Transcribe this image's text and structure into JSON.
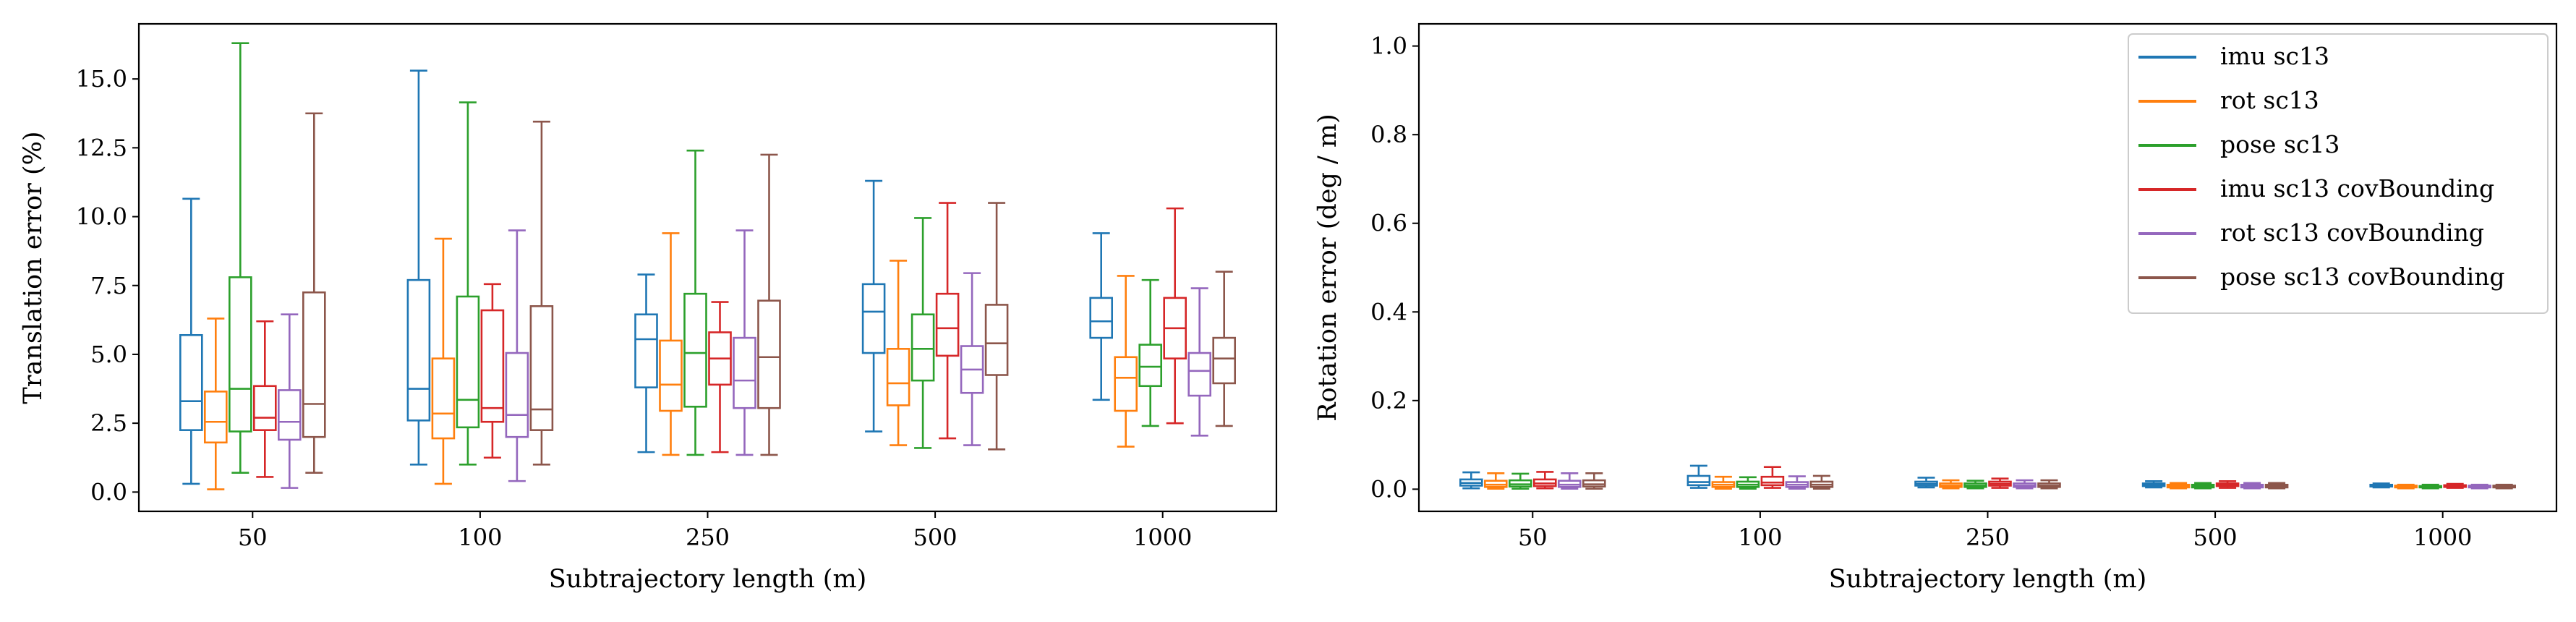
{
  "colors": [
    "#1f77b4",
    "#ff7f0e",
    "#2ca02c",
    "#d62728",
    "#9467bd",
    "#8c564b"
  ],
  "chart_data": [
    {
      "type": "box",
      "xlabel": "Subtrajectory length (m)",
      "ylabel": "Translation error (%)",
      "ylim": [
        -0.7,
        17.0
      ],
      "yticks": [
        "0.0",
        "2.5",
        "5.0",
        "7.5",
        "10.0",
        "12.5",
        "15.0"
      ],
      "categories": [
        "50",
        "100",
        "250",
        "500",
        "1000"
      ],
      "legend": null,
      "series": [
        {
          "name": "imu sc13",
          "boxes": [
            {
              "whislo": 0.3,
              "q1": 2.25,
              "med": 3.3,
              "q3": 5.7,
              "whishi": 10.65
            },
            {
              "whislo": 1.0,
              "q1": 2.6,
              "med": 3.75,
              "q3": 7.7,
              "whishi": 15.3
            },
            {
              "whislo": 1.45,
              "q1": 3.8,
              "med": 5.55,
              "q3": 6.45,
              "whishi": 7.9
            },
            {
              "whislo": 2.2,
              "q1": 5.05,
              "med": 6.55,
              "q3": 7.55,
              "whishi": 11.3
            },
            {
              "whislo": 3.35,
              "q1": 5.6,
              "med": 6.2,
              "q3": 7.05,
              "whishi": 9.4
            }
          ]
        },
        {
          "name": "rot sc13",
          "boxes": [
            {
              "whislo": 0.1,
              "q1": 1.8,
              "med": 2.55,
              "q3": 3.65,
              "whishi": 6.3
            },
            {
              "whislo": 0.3,
              "q1": 1.95,
              "med": 2.85,
              "q3": 4.85,
              "whishi": 9.2
            },
            {
              "whislo": 1.35,
              "q1": 2.95,
              "med": 3.9,
              "q3": 5.5,
              "whishi": 9.4
            },
            {
              "whislo": 1.7,
              "q1": 3.15,
              "med": 3.95,
              "q3": 5.2,
              "whishi": 8.4
            },
            {
              "whislo": 1.65,
              "q1": 2.95,
              "med": 4.15,
              "q3": 4.9,
              "whishi": 7.85
            }
          ]
        },
        {
          "name": "pose sc13",
          "boxes": [
            {
              "whislo": 0.7,
              "q1": 2.2,
              "med": 3.75,
              "q3": 7.8,
              "whishi": 16.3
            },
            {
              "whislo": 1.0,
              "q1": 2.35,
              "med": 3.35,
              "q3": 7.1,
              "whishi": 14.15
            },
            {
              "whislo": 1.35,
              "q1": 3.1,
              "med": 5.05,
              "q3": 7.2,
              "whishi": 12.4
            },
            {
              "whislo": 1.6,
              "q1": 4.05,
              "med": 5.2,
              "q3": 6.45,
              "whishi": 9.95
            },
            {
              "whislo": 2.4,
              "q1": 3.85,
              "med": 4.55,
              "q3": 5.35,
              "whishi": 7.7
            }
          ]
        },
        {
          "name": "imu sc13 covBounding",
          "boxes": [
            {
              "whislo": 0.55,
              "q1": 2.25,
              "med": 2.7,
              "q3": 3.85,
              "whishi": 6.2
            },
            {
              "whislo": 1.25,
              "q1": 2.55,
              "med": 3.05,
              "q3": 6.6,
              "whishi": 7.55
            },
            {
              "whislo": 1.45,
              "q1": 3.9,
              "med": 4.85,
              "q3": 5.8,
              "whishi": 6.9
            },
            {
              "whislo": 1.95,
              "q1": 4.95,
              "med": 5.95,
              "q3": 7.2,
              "whishi": 10.5
            },
            {
              "whislo": 2.5,
              "q1": 4.85,
              "med": 5.95,
              "q3": 7.05,
              "whishi": 10.3
            }
          ]
        },
        {
          "name": "rot sc13 covBounding",
          "boxes": [
            {
              "whislo": 0.15,
              "q1": 1.9,
              "med": 2.55,
              "q3": 3.7,
              "whishi": 6.45
            },
            {
              "whislo": 0.4,
              "q1": 2.0,
              "med": 2.8,
              "q3": 5.05,
              "whishi": 9.5
            },
            {
              "whislo": 1.35,
              "q1": 3.05,
              "med": 4.05,
              "q3": 5.6,
              "whishi": 9.5
            },
            {
              "whislo": 1.7,
              "q1": 3.6,
              "med": 4.45,
              "q3": 5.3,
              "whishi": 7.95
            },
            {
              "whislo": 2.05,
              "q1": 3.5,
              "med": 4.4,
              "q3": 5.05,
              "whishi": 7.4
            }
          ]
        },
        {
          "name": "pose sc13 covBounding",
          "boxes": [
            {
              "whislo": 0.7,
              "q1": 2.0,
              "med": 3.2,
              "q3": 7.25,
              "whishi": 13.75
            },
            {
              "whislo": 1.0,
              "q1": 2.25,
              "med": 3.0,
              "q3": 6.75,
              "whishi": 13.45
            },
            {
              "whislo": 1.35,
              "q1": 3.05,
              "med": 4.9,
              "q3": 6.95,
              "whishi": 12.25
            },
            {
              "whislo": 1.55,
              "q1": 4.25,
              "med": 5.4,
              "q3": 6.8,
              "whishi": 10.5
            },
            {
              "whislo": 2.4,
              "q1": 3.95,
              "med": 4.85,
              "q3": 5.6,
              "whishi": 8.0
            }
          ]
        }
      ]
    },
    {
      "type": "box",
      "xlabel": "Subtrajectory length (m)",
      "ylabel": "Rotation error (deg / m)",
      "ylim": [
        -0.05,
        1.05
      ],
      "yticks": [
        "0.0",
        "0.2",
        "0.4",
        "0.6",
        "0.8",
        "1.0"
      ],
      "categories": [
        "50",
        "100",
        "250",
        "500",
        "1000"
      ],
      "legend": "top-right",
      "series": [
        {
          "name": "imu sc13",
          "boxes": [
            {
              "whislo": 0.002,
              "q1": 0.008,
              "med": 0.014,
              "q3": 0.022,
              "whishi": 0.038
            },
            {
              "whislo": 0.003,
              "q1": 0.009,
              "med": 0.016,
              "q3": 0.03,
              "whishi": 0.053
            },
            {
              "whislo": 0.004,
              "q1": 0.008,
              "med": 0.012,
              "q3": 0.017,
              "whishi": 0.026
            },
            {
              "whislo": 0.004,
              "q1": 0.007,
              "med": 0.01,
              "q3": 0.013,
              "whishi": 0.018
            },
            {
              "whislo": 0.004,
              "q1": 0.006,
              "med": 0.008,
              "q3": 0.01,
              "whishi": 0.013
            }
          ]
        },
        {
          "name": "rot sc13",
          "boxes": [
            {
              "whislo": 0.001,
              "q1": 0.005,
              "med": 0.01,
              "q3": 0.019,
              "whishi": 0.036
            },
            {
              "whislo": 0.001,
              "q1": 0.005,
              "med": 0.01,
              "q3": 0.016,
              "whishi": 0.028
            },
            {
              "whislo": 0.002,
              "q1": 0.005,
              "med": 0.008,
              "q3": 0.013,
              "whishi": 0.02
            },
            {
              "whislo": 0.002,
              "q1": 0.004,
              "med": 0.007,
              "q3": 0.01,
              "whishi": 0.014
            },
            {
              "whislo": 0.002,
              "q1": 0.004,
              "med": 0.006,
              "q3": 0.008,
              "whishi": 0.01
            }
          ]
        },
        {
          "name": "pose sc13",
          "boxes": [
            {
              "whislo": 0.001,
              "q1": 0.006,
              "med": 0.011,
              "q3": 0.02,
              "whishi": 0.035
            },
            {
              "whislo": 0.001,
              "q1": 0.005,
              "med": 0.01,
              "q3": 0.017,
              "whishi": 0.027
            },
            {
              "whislo": 0.002,
              "q1": 0.005,
              "med": 0.008,
              "q3": 0.013,
              "whishi": 0.019
            },
            {
              "whislo": 0.002,
              "q1": 0.004,
              "med": 0.007,
              "q3": 0.01,
              "whishi": 0.014
            },
            {
              "whislo": 0.002,
              "q1": 0.004,
              "med": 0.005,
              "q3": 0.007,
              "whishi": 0.01
            }
          ]
        },
        {
          "name": "imu sc13 covBounding",
          "boxes": [
            {
              "whislo": 0.002,
              "q1": 0.007,
              "med": 0.013,
              "q3": 0.022,
              "whishi": 0.039
            },
            {
              "whislo": 0.003,
              "q1": 0.009,
              "med": 0.015,
              "q3": 0.028,
              "whishi": 0.05
            },
            {
              "whislo": 0.003,
              "q1": 0.008,
              "med": 0.012,
              "q3": 0.017,
              "whishi": 0.024
            },
            {
              "whislo": 0.003,
              "q1": 0.007,
              "med": 0.01,
              "q3": 0.013,
              "whishi": 0.018
            },
            {
              "whislo": 0.003,
              "q1": 0.005,
              "med": 0.007,
              "q3": 0.009,
              "whishi": 0.012
            }
          ]
        },
        {
          "name": "rot sc13 covBounding",
          "boxes": [
            {
              "whislo": 0.001,
              "q1": 0.005,
              "med": 0.01,
              "q3": 0.019,
              "whishi": 0.036
            },
            {
              "whislo": 0.001,
              "q1": 0.005,
              "med": 0.01,
              "q3": 0.016,
              "whishi": 0.029
            },
            {
              "whislo": 0.002,
              "q1": 0.005,
              "med": 0.008,
              "q3": 0.013,
              "whishi": 0.02
            },
            {
              "whislo": 0.002,
              "q1": 0.004,
              "med": 0.007,
              "q3": 0.01,
              "whishi": 0.014
            },
            {
              "whislo": 0.002,
              "q1": 0.004,
              "med": 0.006,
              "q3": 0.008,
              "whishi": 0.01
            }
          ]
        },
        {
          "name": "pose sc13 covBounding",
          "boxes": [
            {
              "whislo": 0.001,
              "q1": 0.006,
              "med": 0.011,
              "q3": 0.02,
              "whishi": 0.036
            },
            {
              "whislo": 0.001,
              "q1": 0.005,
              "med": 0.01,
              "q3": 0.017,
              "whishi": 0.03
            },
            {
              "whislo": 0.002,
              "q1": 0.005,
              "med": 0.008,
              "q3": 0.013,
              "whishi": 0.02
            },
            {
              "whislo": 0.002,
              "q1": 0.004,
              "med": 0.007,
              "q3": 0.01,
              "whishi": 0.014
            },
            {
              "whislo": 0.002,
              "q1": 0.004,
              "med": 0.006,
              "q3": 0.008,
              "whishi": 0.01
            }
          ]
        }
      ]
    }
  ]
}
